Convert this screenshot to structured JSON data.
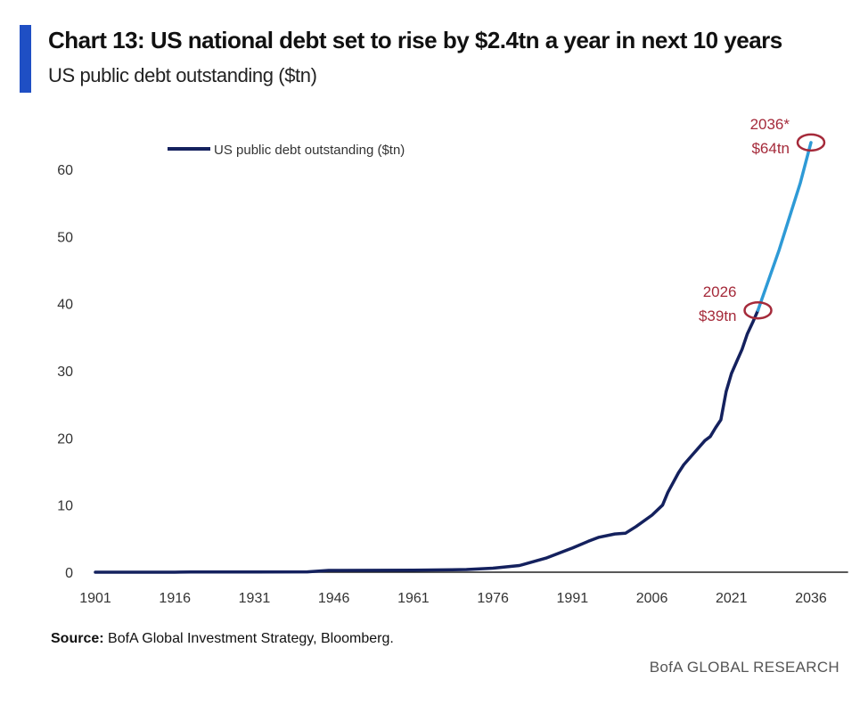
{
  "header": {
    "title": "Chart 13: US national debt set to rise by $2.4tn a year in next 10 years",
    "subtitle": "US public debt outstanding ($tn)",
    "accent_color": "#1f4fc4"
  },
  "chart_data": {
    "type": "line",
    "title": "Chart 13: US national debt set to rise by $2.4tn a year in next 10 years",
    "subtitle": "US public debt outstanding ($tn)",
    "xlabel": "",
    "ylabel": "",
    "xlim": [
      1901,
      2043
    ],
    "ylim": [
      0,
      65
    ],
    "x_ticks": [
      "1901",
      "1916",
      "1931",
      "1946",
      "1961",
      "1976",
      "1991",
      "2006",
      "2021",
      "2036"
    ],
    "y_ticks": [
      "0",
      "10",
      "20",
      "30",
      "40",
      "50",
      "60"
    ],
    "grid": false,
    "legend_position": "top-left",
    "series": [
      {
        "name": "US public debt outstanding ($tn)",
        "color": "#14215e",
        "x": [
          1901,
          1916,
          1917,
          1919,
          1931,
          1941,
          1945,
          1946,
          1961,
          1971,
          1976,
          1981,
          1986,
          1991,
          1994,
          1996,
          1999,
          2001,
          2003,
          2006,
          2008,
          2009,
          2011,
          2012,
          2014,
          2016,
          2017,
          2018,
          2019,
          2020,
          2021,
          2022,
          2023,
          2024,
          2025,
          2026
        ],
        "y": [
          0.0,
          0.0,
          0.01,
          0.03,
          0.02,
          0.05,
          0.26,
          0.27,
          0.29,
          0.4,
          0.6,
          1.0,
          2.1,
          3.6,
          4.6,
          5.2,
          5.7,
          5.8,
          6.8,
          8.5,
          10.0,
          11.9,
          14.8,
          16.0,
          17.8,
          19.6,
          20.2,
          21.5,
          22.7,
          26.9,
          29.6,
          31.4,
          33.2,
          35.5,
          37.2,
          39.0
        ]
      },
      {
        "name": "",
        "color": "#2e9ad6",
        "x": [
          2026,
          2028,
          2030,
          2032,
          2034,
          2036
        ],
        "y": [
          39.0,
          43.5,
          48.0,
          53.0,
          58.0,
          64.0
        ]
      }
    ],
    "annotations": [
      {
        "year_label": "2026",
        "value_label": "$39tn",
        "x": 2026,
        "y": 39
      },
      {
        "year_label": "2036*",
        "value_label": "$64tn",
        "x": 2036,
        "y": 64
      }
    ],
    "annotation_color": "#a52a3a"
  },
  "footer": {
    "source_label": "Source:",
    "source_text": " BofA Global Investment Strategy, Bloomberg.",
    "brand": "BofA GLOBAL RESEARCH"
  }
}
